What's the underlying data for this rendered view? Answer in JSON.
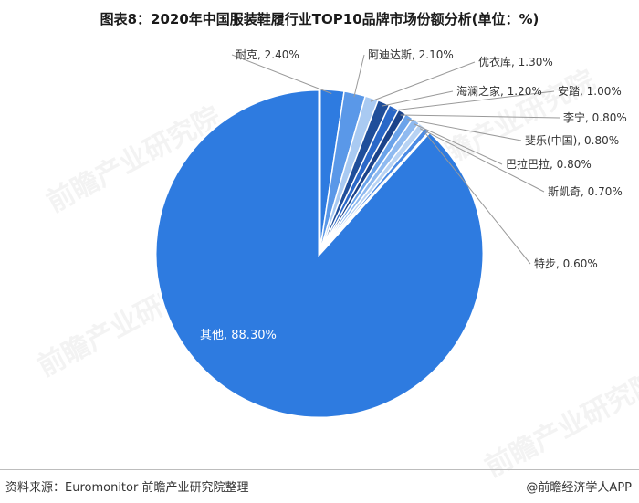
{
  "title": "图表8：2020年中国服装鞋履行业TOP10品牌市场份额分析(单位：%)",
  "footer": {
    "source": "资料来源：Euromonitor 前瞻产业研究院整理",
    "brand": "@前瞻经济学人APP"
  },
  "watermark_text": "前瞻产业研究院",
  "colors": {
    "main": "#2e7be0",
    "light": "#7fb0ee",
    "dark": "#1f4e9a",
    "pale": "#a9caf2",
    "leader": "#9a9a9a"
  },
  "chart_data": {
    "type": "pie",
    "title": "图表8：2020年中国服装鞋履行业TOP10品牌市场份额分析(单位：%)",
    "unit": "%",
    "slices": [
      {
        "name": "耐克",
        "value": 2.4,
        "label": "耐克, 2.40%",
        "color": "#2e7be0"
      },
      {
        "name": "阿迪达斯",
        "value": 2.1,
        "label": "阿迪达斯, 2.10%",
        "color": "#5a98e8"
      },
      {
        "name": "优衣库",
        "value": 1.3,
        "label": "优衣库, 1.30%",
        "color": "#a9caf2"
      },
      {
        "name": "海澜之家",
        "value": 1.2,
        "label": "海澜之家, 1.20%",
        "color": "#1f4e9a"
      },
      {
        "name": "安踏",
        "value": 1.0,
        "label": "安踏, 1.00%",
        "color": "#2a68c8"
      },
      {
        "name": "李宁",
        "value": 0.8,
        "label": "李宁, 0.80%",
        "color": "#1b438a"
      },
      {
        "name": "斐乐(中国)",
        "value": 0.8,
        "label": "斐乐(中国), 0.80%",
        "color": "#6aa3ea"
      },
      {
        "name": "巴拉巴拉",
        "value": 0.8,
        "label": "巴拉巴拉, 0.80%",
        "color": "#8fbaf0"
      },
      {
        "name": "斯凯奇",
        "value": 0.7,
        "label": "斯凯奇, 0.70%",
        "color": "#b8d3f4"
      },
      {
        "name": "特步",
        "value": 0.6,
        "label": "特步, 0.60%",
        "color": "#4a8ae4"
      },
      {
        "name": "其他",
        "value": 88.3,
        "label": "其他, 88.30%",
        "color": "#2e7be0"
      }
    ]
  }
}
